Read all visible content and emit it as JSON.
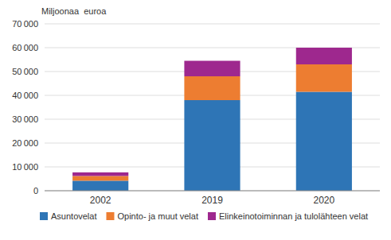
{
  "chart_data": {
    "type": "bar",
    "stacked": true,
    "ylabel": "Miljoonaa  euroa",
    "categories": [
      "2002",
      "2019",
      "2020"
    ],
    "series": [
      {
        "name": "Asuntovelat",
        "color": "#2E75B6",
        "values": [
          4200,
          38000,
          41500
        ]
      },
      {
        "name": "Opinto- ja muut velat",
        "color": "#ED7D31",
        "values": [
          2000,
          10000,
          11500
        ]
      },
      {
        "name": "Elinkeinotoiminnan ja tulolähteen velat",
        "color": "#9E288E",
        "values": [
          1500,
          6500,
          7000
        ]
      }
    ],
    "ylim": [
      0,
      70000
    ],
    "yticks": [
      0,
      {
        "value": 10000,
        "label": "10 000"
      },
      {
        "value": 20000,
        "label": "20 000"
      },
      {
        "value": 30000,
        "label": "30 000"
      },
      {
        "value": 40000,
        "label": "40 000"
      },
      {
        "value": 50000,
        "label": "50 000"
      },
      {
        "value": 60000,
        "label": "60 000"
      },
      {
        "value": 70000,
        "label": "70 000"
      }
    ],
    "grid": true,
    "legend": "bottom"
  }
}
